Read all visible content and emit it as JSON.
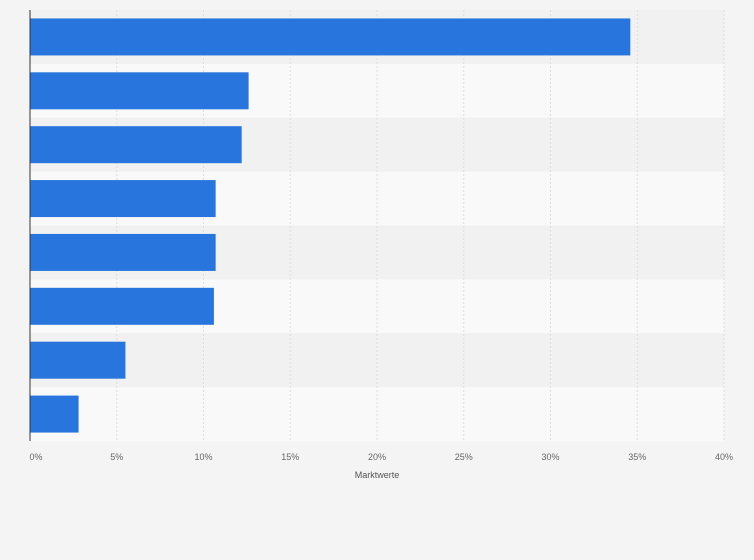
{
  "chart_data": {
    "type": "bar",
    "orientation": "horizontal",
    "categories": [
      "",
      "",
      "",
      "",
      "",
      "",
      "",
      ""
    ],
    "values": [
      34.6,
      12.6,
      12.2,
      10.7,
      10.7,
      10.6,
      5.5,
      2.8
    ],
    "xlabel": "Marktwerte",
    "ylabel": "",
    "xlim": [
      0,
      40
    ],
    "x_ticks": [
      "0%",
      "5%",
      "10%",
      "15%",
      "20%",
      "25%",
      "30%",
      "35%",
      "40%"
    ],
    "grid": true,
    "bar_color": "#2876dd"
  }
}
